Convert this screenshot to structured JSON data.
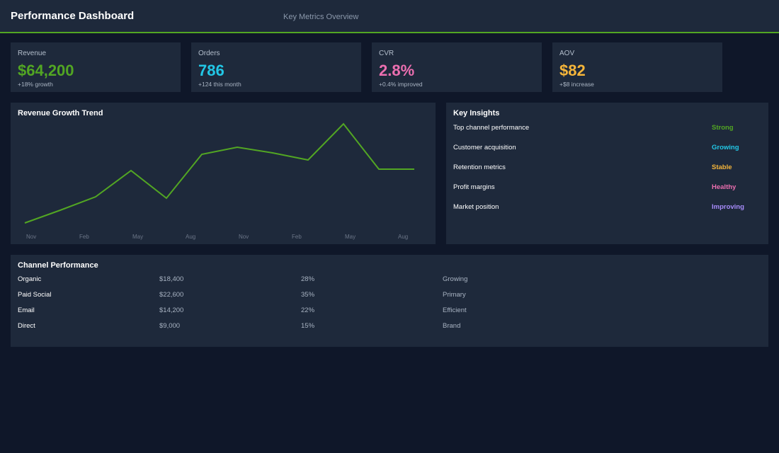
{
  "header": {
    "title": "Performance Dashboard",
    "subtitle": "Key Metrics Overview"
  },
  "kpis": [
    {
      "label": "Revenue",
      "value": "$64,200",
      "sub": "+18% growth",
      "color": "#52a623"
    },
    {
      "label": "Orders",
      "value": "786",
      "sub": "+124 this month",
      "color": "#22c7e6"
    },
    {
      "label": "CVR",
      "value": "2.8%",
      "sub": "+0.4% improved",
      "color": "#ec6fb0"
    },
    {
      "label": "AOV",
      "value": "$82",
      "sub": "+$8 increase",
      "color": "#f5b53a"
    }
  ],
  "trend": {
    "title": "Revenue Growth Trend",
    "line_color": "#52a623"
  },
  "chart_data": {
    "type": "line",
    "title": "Revenue Growth Trend",
    "x_tick_labels": [
      "Nov",
      "Feb",
      "May",
      "Aug",
      "Nov",
      "Feb",
      "May",
      "Aug"
    ],
    "series": [
      {
        "values": [
          0,
          18,
          37,
          74,
          35,
          97,
          107,
          99,
          89,
          140,
          76,
          76
        ]
      }
    ],
    "ylim": [
      0,
      140
    ],
    "grid": false,
    "xlabel": "",
    "ylabel": ""
  },
  "insights": {
    "title": "Key Insights",
    "items": [
      {
        "label": "Top channel performance",
        "status": "Strong",
        "color": "#52a623"
      },
      {
        "label": "Customer acquisition",
        "status": "Growing",
        "color": "#22c7e6"
      },
      {
        "label": "Retention metrics",
        "status": "Stable",
        "color": "#f5b53a"
      },
      {
        "label": "Profit margins",
        "status": "Healthy",
        "color": "#ec6fb0"
      },
      {
        "label": "Market position",
        "status": "Improving",
        "color": "#a78bfa"
      }
    ]
  },
  "channels": {
    "title": "Channel Performance",
    "rows": [
      {
        "name": "Organic",
        "revenue": "$18,400",
        "share": "28%",
        "status": "Growing"
      },
      {
        "name": "Paid Social",
        "revenue": "$22,600",
        "share": "35%",
        "status": "Primary"
      },
      {
        "name": "Email",
        "revenue": "$14,200",
        "share": "22%",
        "status": "Efficient"
      },
      {
        "name": "Direct",
        "revenue": "$9,000",
        "share": "15%",
        "status": "Brand"
      }
    ]
  }
}
